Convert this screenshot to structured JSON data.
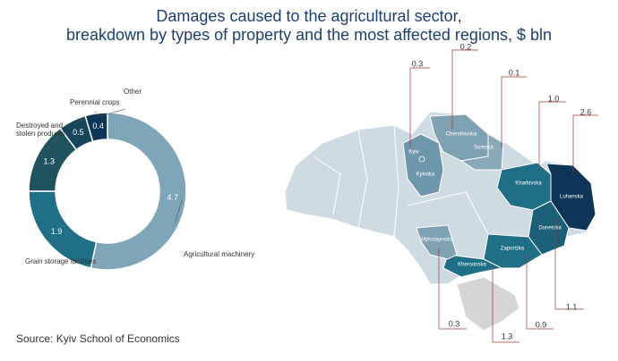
{
  "title": "Damages caused to the agricultural sector,\nbreakdown by types of property and the most affected regions, $ bln",
  "source": "Source: Kyiv School of Economics",
  "chart_data": [
    {
      "type": "donut",
      "categories": [
        "Agricultural machinery",
        "Grain storage facilities",
        "Destroyed and stolen products",
        "Perennial crops",
        "Other"
      ],
      "values": [
        4.7,
        1.9,
        1.3,
        0.5,
        0.4
      ],
      "colors": [
        "#7fa6b8",
        "#1f6f86",
        "#1f5360",
        "#17455a",
        "#0d3557"
      ]
    },
    {
      "type": "map",
      "regions": [
        "Kyivska",
        "Chernihivska",
        "Sumska",
        "Kharkivska",
        "Luhanska",
        "Donetska",
        "Zaporizka",
        "Khersonska",
        "Mykolayivska"
      ],
      "values": [
        0.3,
        0.2,
        0.1,
        1.0,
        2.6,
        1.1,
        0.9,
        1.3,
        0.3
      ],
      "value_labels": [
        "0.3",
        "0.2",
        "0.1",
        "1.0",
        "2.6",
        "1.1",
        "0.9",
        "1.3",
        "0.3"
      ],
      "colors": [
        "#6f97ac",
        "#7fa2b3",
        "#8aa9b8",
        "#1e6e85",
        "#0d3557",
        "#1b5f78",
        "#1f6f86",
        "#1f6f86",
        "#7fa2b3"
      ],
      "city_label": "Kyiv"
    }
  ]
}
